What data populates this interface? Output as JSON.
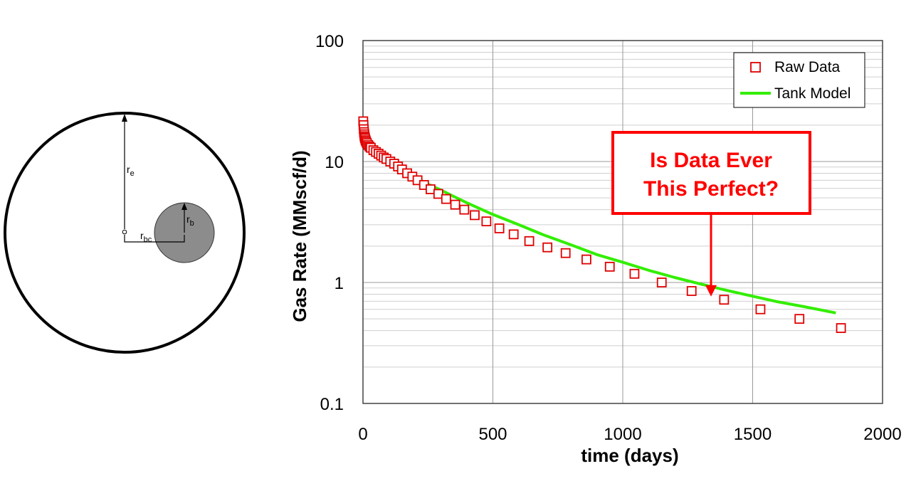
{
  "diagram": {
    "labels": {
      "re": "r",
      "re_sub": "e",
      "rb": "r",
      "rb_sub": "b",
      "rbc": "r",
      "rbc_sub": "bc"
    }
  },
  "chart_data": {
    "type": "scatter",
    "xlabel": "time (days)",
    "ylabel": "Gas Rate (MMscf/d)",
    "xlim": [
      0,
      2000
    ],
    "ylim": [
      0.1,
      100
    ],
    "y_scale": "log",
    "x_ticks": [
      "0",
      "500",
      "1000",
      "1500",
      "2000"
    ],
    "y_ticks": [
      "0.1",
      "1",
      "10",
      "100"
    ],
    "grid": true,
    "legend_position": "top-right",
    "colors": {
      "raw": "#e00000",
      "model": "#33ee00",
      "callout": "#ff0000"
    },
    "series": [
      {
        "name": "Raw Data",
        "kind": "scatter",
        "marker": "square-open",
        "x": [
          1,
          2,
          3,
          4,
          5,
          6,
          7,
          8,
          10,
          12,
          15,
          20,
          25,
          30,
          40,
          50,
          60,
          70,
          80,
          90,
          105,
          120,
          135,
          150,
          170,
          190,
          210,
          235,
          260,
          290,
          320,
          355,
          390,
          430,
          475,
          525,
          580,
          640,
          710,
          780,
          860,
          950,
          1045,
          1150,
          1265,
          1390,
          1530,
          1680,
          1840
        ],
        "y": [
          21.5,
          20,
          18.5,
          17.5,
          16.8,
          16.2,
          15.8,
          15.5,
          15,
          14.6,
          14.2,
          13.7,
          13.3,
          13,
          12.4,
          12,
          11.6,
          11.2,
          10.8,
          10.5,
          10,
          9.6,
          9.1,
          8.6,
          8,
          7.5,
          7,
          6.4,
          5.9,
          5.4,
          4.9,
          4.4,
          4,
          3.6,
          3.2,
          2.8,
          2.5,
          2.2,
          1.95,
          1.75,
          1.55,
          1.35,
          1.18,
          1.0,
          0.85,
          0.72,
          0.6,
          0.5,
          0.42
        ]
      },
      {
        "name": "Tank Model",
        "kind": "line",
        "x": [
          0,
          10,
          25,
          50,
          100,
          150,
          200,
          250,
          300,
          400,
          500,
          600,
          700,
          800,
          900,
          1000,
          1100,
          1200,
          1300,
          1400,
          1500,
          1600,
          1700,
          1820
        ],
        "y": [
          15,
          13.8,
          12.8,
          11.6,
          9.8,
          8.5,
          7.4,
          6.5,
          5.8,
          4.55,
          3.65,
          3.0,
          2.45,
          2.05,
          1.7,
          1.47,
          1.26,
          1.1,
          0.97,
          0.86,
          0.77,
          0.69,
          0.63,
          0.56
        ]
      }
    ],
    "annotations": [
      {
        "text_line1": "Is Data Ever",
        "text_line2": "This Perfect?",
        "points_to_x": 1340,
        "points_to_y": 0.9
      }
    ]
  }
}
